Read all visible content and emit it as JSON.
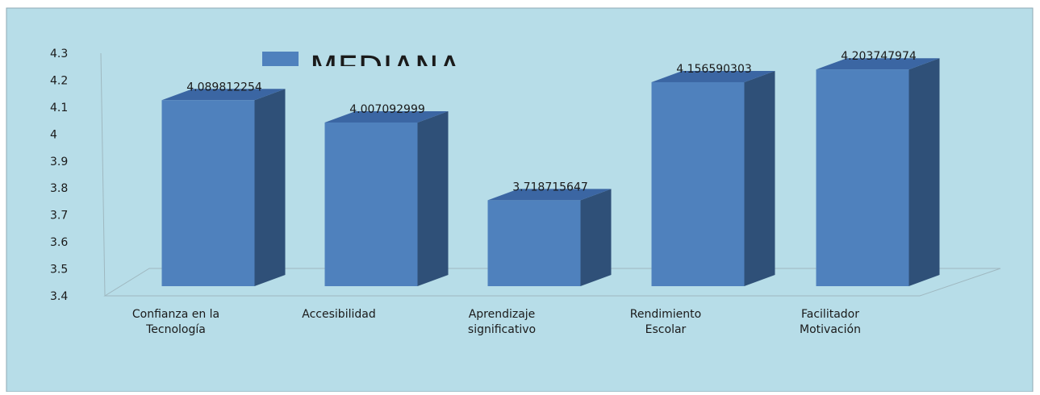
{
  "chart_data": {
    "type": "bar3d",
    "categories": [
      [
        "Confianza en la",
        "Tecnología"
      ],
      [
        "Accesibilidad"
      ],
      [
        "Aprendizaje",
        "significativo"
      ],
      [
        "Rendimiento",
        "Escolar"
      ],
      [
        "Facilitador",
        "Motivación"
      ]
    ],
    "series": [
      {
        "name": "MEDIANA",
        "color": "#4f81bd",
        "values": [
          4.089812254,
          4.007092999,
          3.718715647,
          4.156590303,
          4.203747974
        ]
      }
    ],
    "ylim": [
      3.4,
      4.3
    ],
    "yticks": [
      3.4,
      3.5,
      3.6,
      3.7,
      3.8,
      3.9,
      4,
      4.1,
      4.2,
      4.3
    ]
  }
}
